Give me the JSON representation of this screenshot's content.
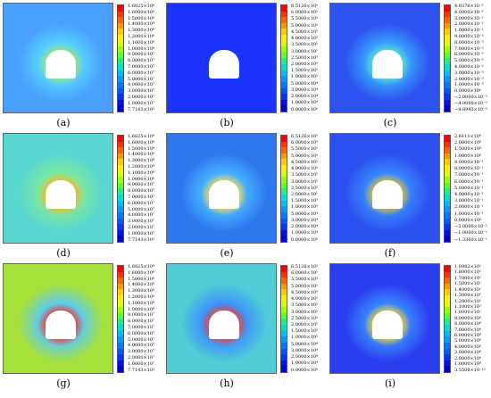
{
  "panels": [
    {
      "caption": "(a)",
      "bg": "#4aa0ff",
      "halo": "#58d4ff",
      "rim": "#9ee36a",
      "ticks": [
        "1.6825×10⁸",
        "1.6000×10⁸",
        "1.5000×10⁸",
        "1.4000×10⁸",
        "1.3000×10⁸",
        "1.2000×10⁸",
        "1.1000×10⁸",
        "1.0000×10⁸",
        "9.0000×10⁷",
        "8.0000×10⁷",
        "7.0000×10⁷",
        "6.0000×10⁷",
        "5.0000×10⁷",
        "4.0000×10⁷",
        "3.0000×10⁷",
        "2.0000×10⁷",
        "1.0000×10⁷",
        "7.7143×10³"
      ]
    },
    {
      "caption": "(b)",
      "bg": "#1a33ff",
      "halo": "#1a33ff",
      "rim": "#1a33ff",
      "ticks": [
        "6.5126×10⁵",
        "6.0000×10⁵",
        "5.5000×10⁵",
        "5.0000×10⁵",
        "4.5000×10⁵",
        "4.0000×10⁵",
        "3.5000×10⁵",
        "3.0000×10⁵",
        "2.5000×10⁵",
        "2.0000×10⁵",
        "1.5000×10⁵",
        "1.0000×10⁵",
        "5.0000×10⁴",
        "3.0000×10⁴",
        "2.0000×10⁴",
        "1.0000×10⁴",
        "0.0000×10⁰"
      ]
    },
    {
      "caption": "(c)",
      "bg": "#2c52f0",
      "halo": "#3aa6ff",
      "rim": "#5fe0c8",
      "ticks": [
        "4.9376×10⁻²",
        "4.0000×10⁻²",
        "3.0000×10⁻²",
        "2.0000×10⁻²",
        "1.0000×10⁻²",
        "9.0000×10⁻³",
        "8.0000×10⁻³",
        "7.0000×10⁻³",
        "6.0000×10⁻³",
        "5.0000×10⁻³",
        "4.0000×10⁻³",
        "3.0000×10⁻³",
        "2.0000×10⁻³",
        "1.0000×10⁻³",
        "0.0000×10⁰",
        "−2.0000×10⁻³",
        "−4.0000×10⁻³",
        "−4.8945×10⁻³"
      ]
    },
    {
      "caption": "(d)",
      "bg": "#5ad6d0",
      "halo": "#7ee89a",
      "rim": "#ffb020",
      "ticks": [
        "1.6825×10⁸",
        "1.6000×10⁸",
        "1.5000×10⁸",
        "1.4000×10⁸",
        "1.3000×10⁸",
        "1.2000×10⁸",
        "1.1000×10⁸",
        "1.0000×10⁸",
        "9.0000×10⁷",
        "8.0000×10⁷",
        "7.0000×10⁷",
        "6.0000×10⁷",
        "5.0000×10⁷",
        "4.0000×10⁷",
        "3.0000×10⁷",
        "2.0000×10⁷",
        "1.0000×10⁷",
        "7.7143×10³"
      ]
    },
    {
      "caption": "(e)",
      "bg": "#2f79ef",
      "halo": "#48b6ff",
      "rim": "#ffd84a",
      "ticks": [
        "6.5126×10⁵",
        "6.0000×10⁵",
        "5.5000×10⁵",
        "5.0000×10⁵",
        "4.5000×10⁵",
        "4.0000×10⁵",
        "3.5000×10⁵",
        "3.0000×10⁵",
        "2.5000×10⁵",
        "2.0000×10⁵",
        "1.5000×10⁵",
        "1.0000×10⁵",
        "5.0000×10⁴",
        "3.0000×10⁴",
        "2.0000×10⁴",
        "1.0000×10⁴",
        "0.0000×10⁰"
      ]
    },
    {
      "caption": "(f)",
      "bg": "#2a50f0",
      "halo": "#3b8cff",
      "rim": "#e8c020",
      "ticks": [
        "2.6111×10⁰",
        "2.0000×10⁰",
        "1.5000×10⁰",
        "1.0000×10⁰",
        "9.0000×10⁻¹",
        "8.0000×10⁻¹",
        "7.0000×10⁻¹",
        "6.0000×10⁻¹",
        "5.0000×10⁻¹",
        "4.0000×10⁻¹",
        "3.0000×10⁻¹",
        "2.0000×10⁻¹",
        "1.0000×10⁻¹",
        "0.0000×10⁰",
        "−5.0000×10⁻²",
        "−1.0000×10⁻¹",
        "−1.3360×10⁻¹"
      ]
    },
    {
      "caption": "(g)",
      "bg": "#a6e03a",
      "halo": "#58c8ff",
      "rim": "#ff3010",
      "ticks": [
        "1.6825×10⁸",
        "1.6000×10⁸",
        "1.5000×10⁸",
        "1.4000×10⁸",
        "1.3000×10⁸",
        "1.2000×10⁸",
        "1.1000×10⁸",
        "1.0000×10⁸",
        "9.0000×10⁷",
        "8.0000×10⁷",
        "7.0000×10⁷",
        "6.0000×10⁷",
        "5.0000×10⁷",
        "4.0000×10⁷",
        "3.0000×10⁷",
        "2.0000×10⁷",
        "1.0000×10⁷",
        "7.7143×10³"
      ]
    },
    {
      "caption": "(h)",
      "bg": "#52ccd6",
      "halo": "#3a8cff",
      "rim": "#ff4020",
      "ticks": [
        "6.5126×10⁵",
        "6.0000×10⁵",
        "5.5000×10⁵",
        "5.0000×10⁵",
        "4.5000×10⁵",
        "4.0000×10⁵",
        "3.5000×10⁵",
        "3.0000×10⁵",
        "2.5000×10⁵",
        "2.0000×10⁵",
        "1.5000×10⁵",
        "1.0000×10⁵",
        "5.0000×10⁴",
        "3.0000×10⁴",
        "2.0000×10⁴",
        "1.0000×10⁴",
        "0.0000×10⁰"
      ]
    },
    {
      "caption": "(i)",
      "bg": "#2a3ef0",
      "halo": "#3a8cff",
      "rim": "#ffd020",
      "ticks": [
        "1.8982×10¹",
        "1.8000×10¹",
        "1.7000×10¹",
        "1.5000×10¹",
        "1.4000×10¹",
        "1.3000×10¹",
        "1.2000×10¹",
        "1.1000×10¹",
        "1.0000×10¹",
        "9.0000×10⁰",
        "8.0000×10⁰",
        "7.0000×10⁰",
        "6.0000×10⁰",
        "5.0000×10⁰",
        "4.0000×10⁰",
        "3.0000×10⁰",
        "2.0000×10⁰",
        "1.0000×10⁰",
        "3.5508×10⁻¹⁵"
      ]
    }
  ],
  "colorbar_colors": [
    "#ff0000",
    "#ff3300",
    "#ff6600",
    "#ff9900",
    "#ffcc00",
    "#ffee00",
    "#ddff00",
    "#99ff00",
    "#55ff33",
    "#22ee88",
    "#00ddcc",
    "#00bbff",
    "#0099ff",
    "#0077ff",
    "#0055ff",
    "#0033ff",
    "#0011ee",
    "#0000cc"
  ]
}
